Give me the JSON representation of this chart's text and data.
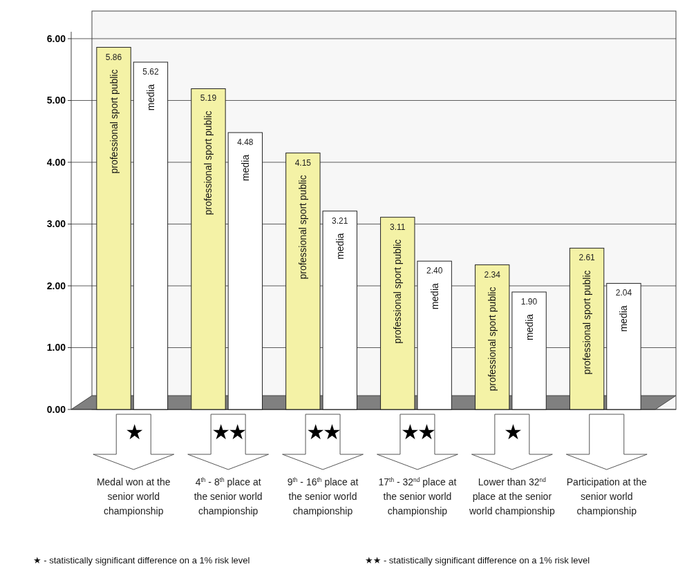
{
  "chart_data": {
    "type": "bar",
    "categories": [
      "Medal won at the senior world championship",
      "4$^{th}$ - 8$^{th}$ place at the senior world championship",
      "9$^{th}$ - 16$^{th}$ place at the senior world championship",
      "17$^{th}$ - 32$^{nd}$ place at the senior world championship",
      "Lower than 32$^{nd}$ place at the senior world championship",
      "Participation at the senior world championship"
    ],
    "series": [
      {
        "name": "professional sport public",
        "color": "#f4f2a6",
        "values": [
          5.86,
          5.19,
          4.15,
          3.11,
          2.34,
          2.61
        ],
        "value_labels": [
          "5.86",
          "5.19",
          "4.15",
          "3.11",
          "2.34",
          "2.61"
        ]
      },
      {
        "name": "media",
        "color": "#ffffff",
        "values": [
          5.62,
          4.48,
          3.21,
          2.4,
          1.9,
          2.04
        ],
        "value_labels": [
          "5.62",
          "4.48",
          "3.21",
          "2.40",
          "1.90",
          "2.04"
        ]
      }
    ],
    "ylim": [
      0,
      6
    ],
    "yticks": [
      {
        "value": 0,
        "label": "0.00"
      },
      {
        "value": 1,
        "label": "1.00"
      },
      {
        "value": 2,
        "label": "2.00"
      },
      {
        "value": 3,
        "label": "3.00"
      },
      {
        "value": 4,
        "label": "4.00"
      },
      {
        "value": 5,
        "label": "5.00"
      },
      {
        "value": 6,
        "label": "6.00"
      }
    ],
    "grid": "y",
    "annotations": [
      "★",
      "★★",
      "★★",
      "★★",
      "★",
      "★ - statistically significant difference on a 1% risk level",
      "★★ - statistically significant difference on a 1% risk level"
    ]
  }
}
